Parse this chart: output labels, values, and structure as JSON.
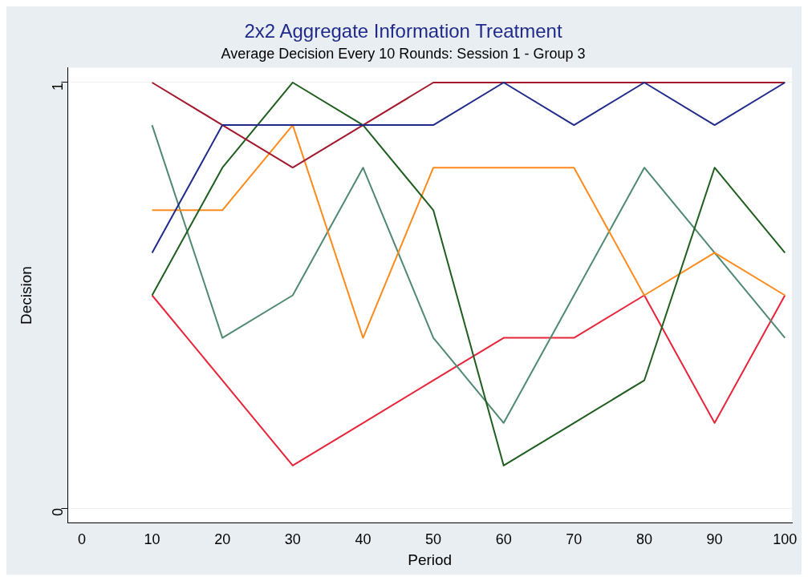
{
  "chart_data": {
    "type": "line",
    "title": "2x2 Aggregate Information Treatment",
    "subtitle": "Average Decision Every 10 Rounds: Session 1 - Group 3",
    "xlabel": "Period",
    "ylabel": "Decision",
    "x": [
      10,
      20,
      30,
      40,
      50,
      60,
      70,
      80,
      90,
      100
    ],
    "series": [
      {
        "color": "#1f2a8a",
        "values": [
          0.6,
          0.9,
          0.9,
          0.9,
          0.9,
          1,
          0.9,
          1,
          0.9,
          1
        ]
      },
      {
        "color": "#a3182c",
        "values": [
          1,
          0.9,
          0.8,
          0.9,
          1,
          1,
          1,
          1,
          1,
          1
        ]
      },
      {
        "color": "#1e5e1e",
        "values": [
          0.5,
          0.8,
          1,
          0.9,
          0.7,
          0.1,
          0.2,
          0.3,
          0.8,
          0.6
        ]
      },
      {
        "color": "#ff8a1c",
        "values": [
          0.7,
          0.7,
          0.9,
          0.4,
          0.8,
          0.8,
          0.8,
          0.5,
          0.6,
          0.5
        ]
      },
      {
        "color": "#4f8a70",
        "values": [
          0.9,
          0.4,
          0.5,
          0.8,
          0.4,
          0.2,
          0.5,
          0.8,
          0.6,
          0.4
        ]
      },
      {
        "color": "#e8243a",
        "values": [
          0.5,
          0.3,
          0.1,
          0.2,
          0.3,
          0.4,
          0.4,
          0.5,
          0.2,
          0.5
        ]
      }
    ],
    "xlim": [
      -2,
      101
    ],
    "xticks": [
      0,
      10,
      20,
      30,
      40,
      50,
      60,
      70,
      80,
      90,
      100
    ],
    "ylim": [
      -0.035,
      1.035
    ],
    "yticks": [
      0,
      1
    ],
    "grid": "y",
    "legend": false,
    "marker": "none",
    "line_style": "solid"
  }
}
